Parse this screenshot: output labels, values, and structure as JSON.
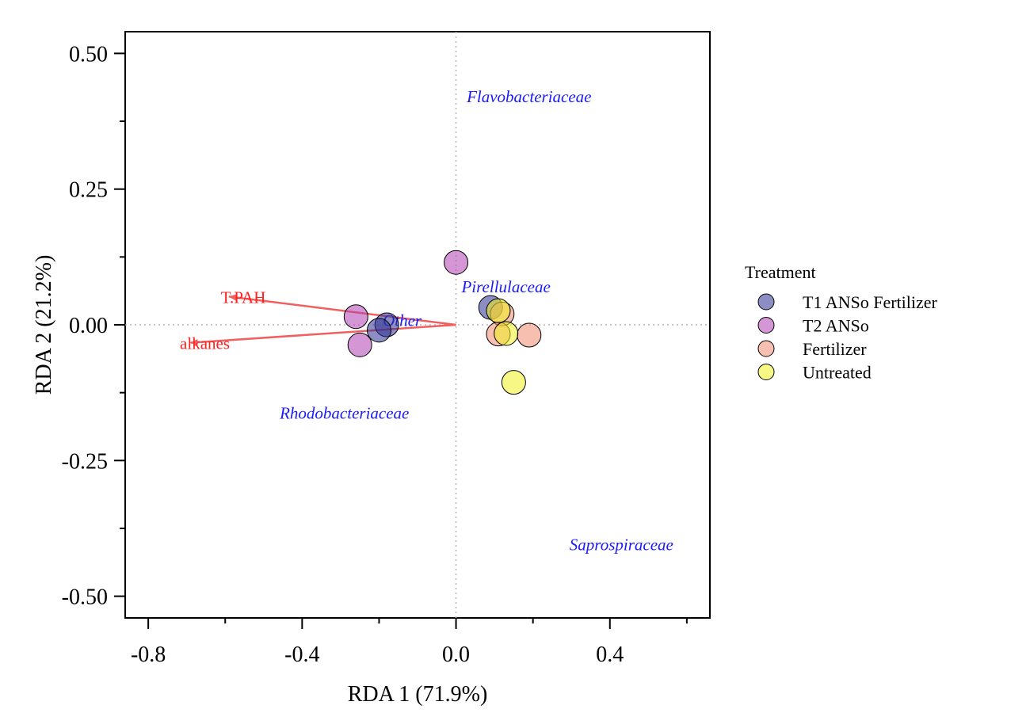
{
  "chart_data": {
    "type": "scatter",
    "xlabel": "RDA 1 (71.9%)",
    "ylabel": "RDA 2 (21.2%)",
    "xlim": [
      -0.86,
      0.66
    ],
    "ylim": [
      -0.54,
      0.54
    ],
    "x_ticks": [
      -0.8,
      -0.4,
      0.0,
      0.4
    ],
    "x_tick_labels": [
      "-0.8",
      "-0.4",
      "0.0",
      "0.4"
    ],
    "x_minor_ticks": [
      -0.6,
      -0.2,
      0.2,
      0.6
    ],
    "y_ticks": [
      0.5,
      0.25,
      0.0,
      -0.25,
      -0.5
    ],
    "y_tick_labels": [
      "0.50",
      "0.25",
      "0.00",
      "-0.25",
      "-0.50"
    ],
    "y_minor_ticks": [
      0.375,
      0.125,
      -0.125,
      -0.375
    ],
    "grid": false,
    "reference_lines": {
      "x": 0,
      "y": 0,
      "style": "dotted",
      "color": "#b5b5b5"
    },
    "legend": {
      "title": "Treatment",
      "position": "right",
      "entries": [
        {
          "label": "T1 ANSo Fertilizer",
          "color": "#2e3192"
        },
        {
          "label": "T2 ANSo",
          "color": "#b040b0"
        },
        {
          "label": "Fertilizer",
          "color": "#f08a70"
        },
        {
          "label": "Untreated",
          "color": "#f0f020"
        }
      ]
    },
    "series": [
      {
        "name": "T1 ANSo Fertilizer",
        "color": "#2e3192",
        "x": [
          0.09,
          -0.18,
          -0.2
        ],
        "y": [
          0.032,
          0.0,
          -0.01
        ]
      },
      {
        "name": "T2 ANSo",
        "color": "#b040b0",
        "x": [
          0.0,
          -0.26,
          -0.25
        ],
        "y": [
          0.115,
          0.015,
          -0.037
        ]
      },
      {
        "name": "Fertilizer",
        "color": "#f08a70",
        "x": [
          0.12,
          0.11,
          0.19
        ],
        "y": [
          0.02,
          -0.017,
          -0.019
        ]
      },
      {
        "name": "Untreated",
        "color": "#f0f020",
        "x": [
          0.11,
          0.13,
          0.15
        ],
        "y": [
          0.026,
          -0.016,
          -0.106
        ]
      }
    ],
    "species": [
      {
        "label": "Flavobacteriaceae",
        "x": 0.19,
        "y": 0.42
      },
      {
        "label": "Pirellulaceae",
        "x": 0.13,
        "y": 0.07
      },
      {
        "label": "Other",
        "x": -0.14,
        "y": 0.008
      },
      {
        "label": "Rhodobacteriaceae",
        "x": -0.29,
        "y": -0.163
      },
      {
        "label": "Saprospiraceae",
        "x": 0.43,
        "y": -0.405
      }
    ],
    "species_color": "#1a1aff",
    "env_vectors": [
      {
        "label": "T.PAH",
        "x": -0.59,
        "y": 0.052
      },
      {
        "label": "alkanes",
        "x": -0.69,
        "y": -0.033
      }
    ],
    "env_color": "#ff2020",
    "env_arrow_color": "#f06060"
  }
}
